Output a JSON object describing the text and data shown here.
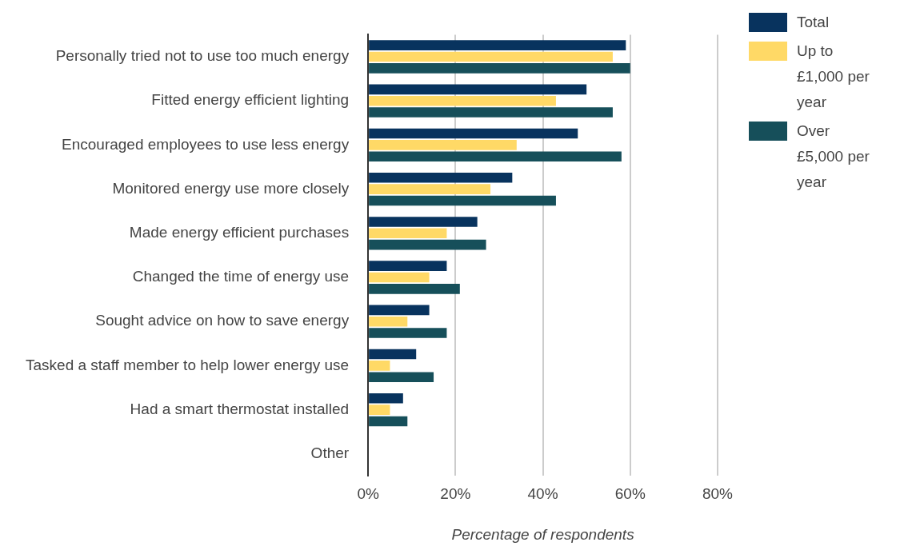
{
  "chart_data": {
    "type": "bar",
    "orientation": "horizontal",
    "xlabel": "Percentage of respondents",
    "categories": [
      "Personally tried not to use too much energy",
      "Fitted energy efficient lighting",
      "Encouraged employees to use less energy",
      "Monitored energy use more closely",
      "Made energy efficient purchases",
      "Changed the time of energy use",
      "Sought advice on how to save energy",
      "Tasked a staff member to help lower energy use",
      "Had a smart thermostat installed",
      "Other"
    ],
    "series": [
      {
        "name": "Total",
        "color": "#08335e",
        "values": [
          59,
          50,
          48,
          33,
          25,
          18,
          14,
          11,
          8,
          0
        ]
      },
      {
        "name": "Up to £1,000 per year",
        "color": "#ffd966",
        "values": [
          56,
          43,
          34,
          28,
          18,
          14,
          9,
          5,
          5,
          0
        ]
      },
      {
        "name": "Over £5,000 per year",
        "color": "#164f5a",
        "values": [
          60,
          56,
          58,
          43,
          27,
          21,
          18,
          15,
          9,
          0
        ]
      }
    ],
    "xlim": [
      0,
      80
    ],
    "xticks": [
      {
        "value": 0,
        "label": "0%"
      },
      {
        "value": 20,
        "label": "20%"
      },
      {
        "value": 40,
        "label": "40%"
      },
      {
        "value": 60,
        "label": "60%"
      },
      {
        "value": 80,
        "label": "80%"
      }
    ],
    "grid": "x",
    "legend": "top right"
  }
}
